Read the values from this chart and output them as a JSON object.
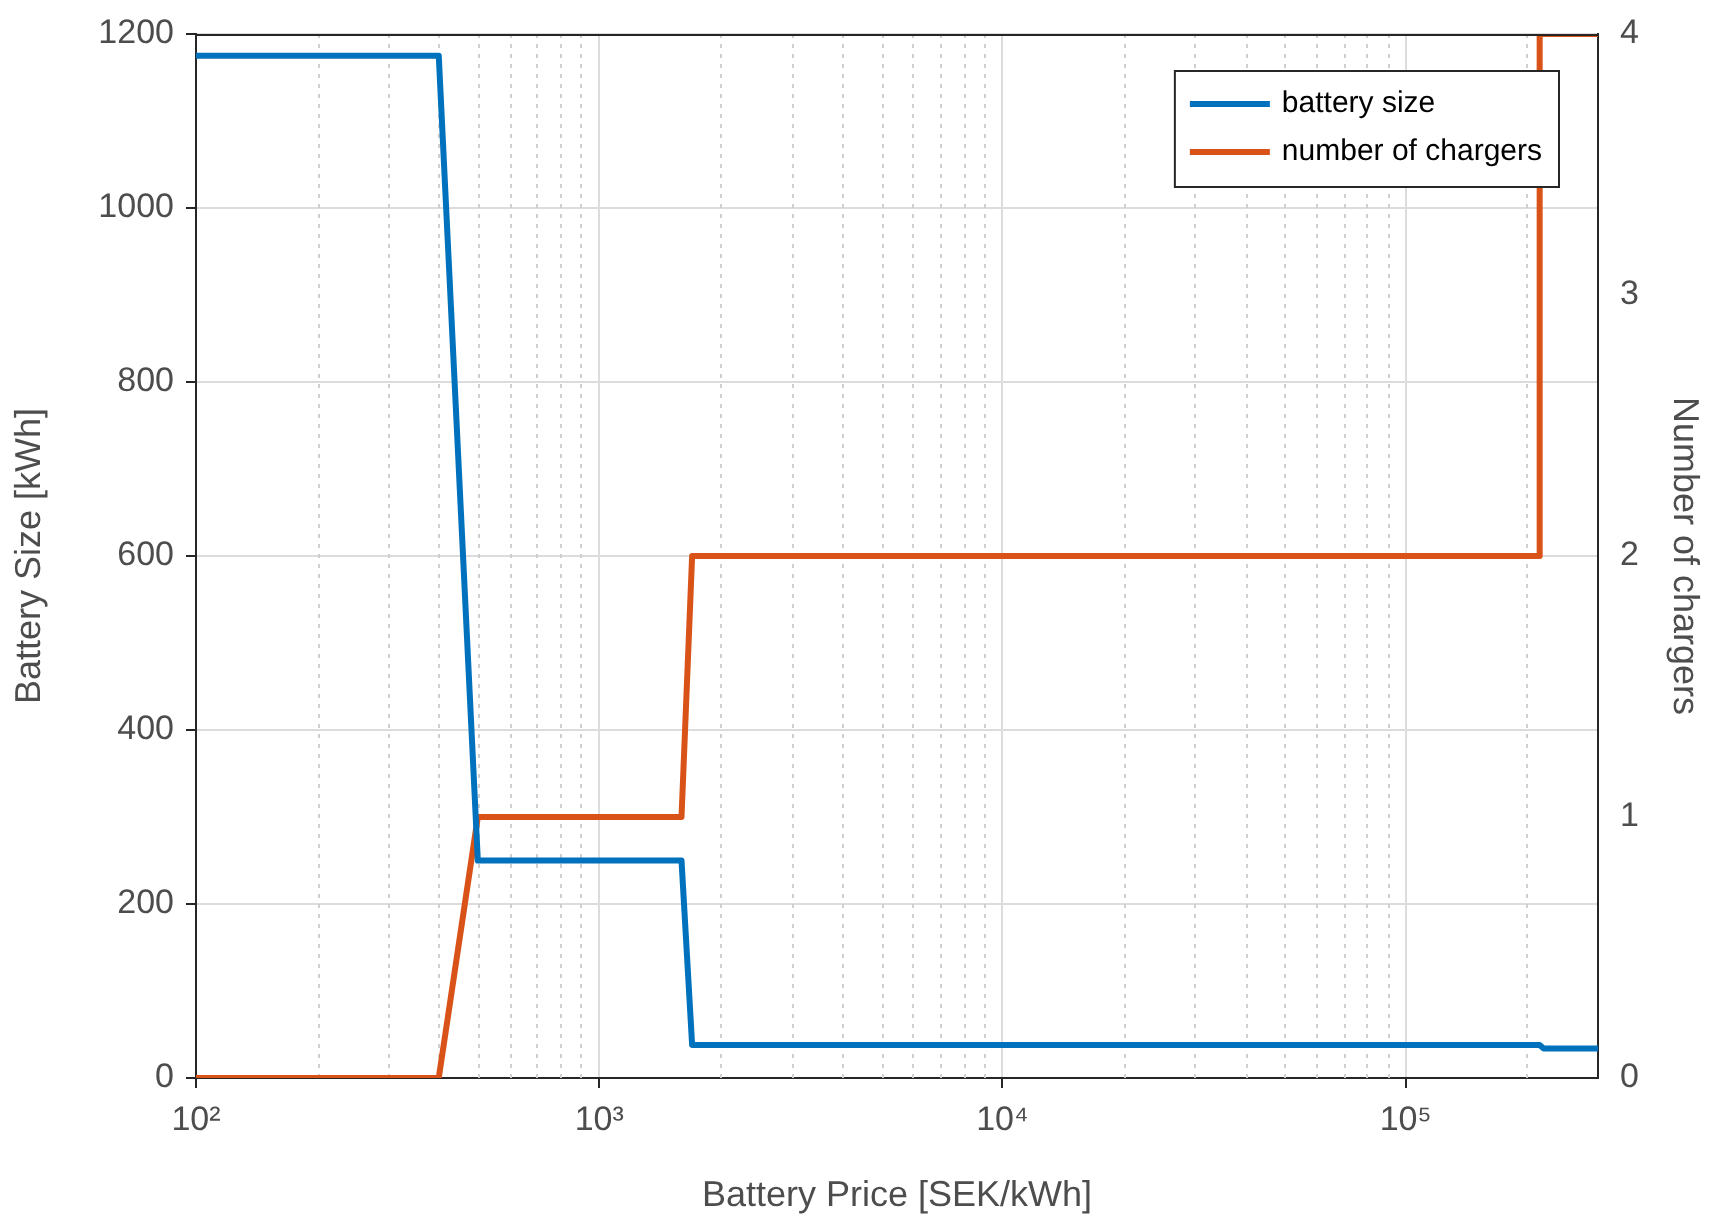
{
  "chart_data": {
    "type": "line",
    "xlabel": "Battery Price [SEK/kWh]",
    "ylabel": "Battery Size [kWh]",
    "y2label": "Number of chargers",
    "series": [
      {
        "name": "battery size",
        "color": "#0072bd",
        "x": [
          100,
          400,
          500,
          1600,
          1700,
          215000,
          220000,
          300000
        ],
        "values": [
          1175,
          1175,
          250,
          250,
          38,
          38,
          34,
          34
        ]
      },
      {
        "name": "number of chargers",
        "color": "#d95319",
        "axis": "y2",
        "x": [
          100,
          400,
          500,
          1600,
          1700,
          215000,
          215001,
          300000
        ],
        "values": [
          0,
          0,
          1,
          1,
          2,
          2,
          4,
          4
        ]
      }
    ],
    "log": "x",
    "xlim": [
      100,
      300000
    ],
    "xticks": [
      {
        "value": 100,
        "label": "10²"
      },
      {
        "value": 1000,
        "label": "10³"
      },
      {
        "value": 10000,
        "label": "10⁴"
      },
      {
        "value": 100000,
        "label": "10⁵"
      }
    ],
    "ylim": [
      0,
      1200
    ],
    "yticks": [
      0,
      200,
      400,
      600,
      800,
      1000,
      1200
    ],
    "y2lim": [
      0,
      4
    ],
    "y2ticks": [
      0,
      1,
      2,
      3,
      4
    ],
    "grid": true,
    "legend": "top right",
    "marker": "none",
    "line_style": "solid"
  }
}
